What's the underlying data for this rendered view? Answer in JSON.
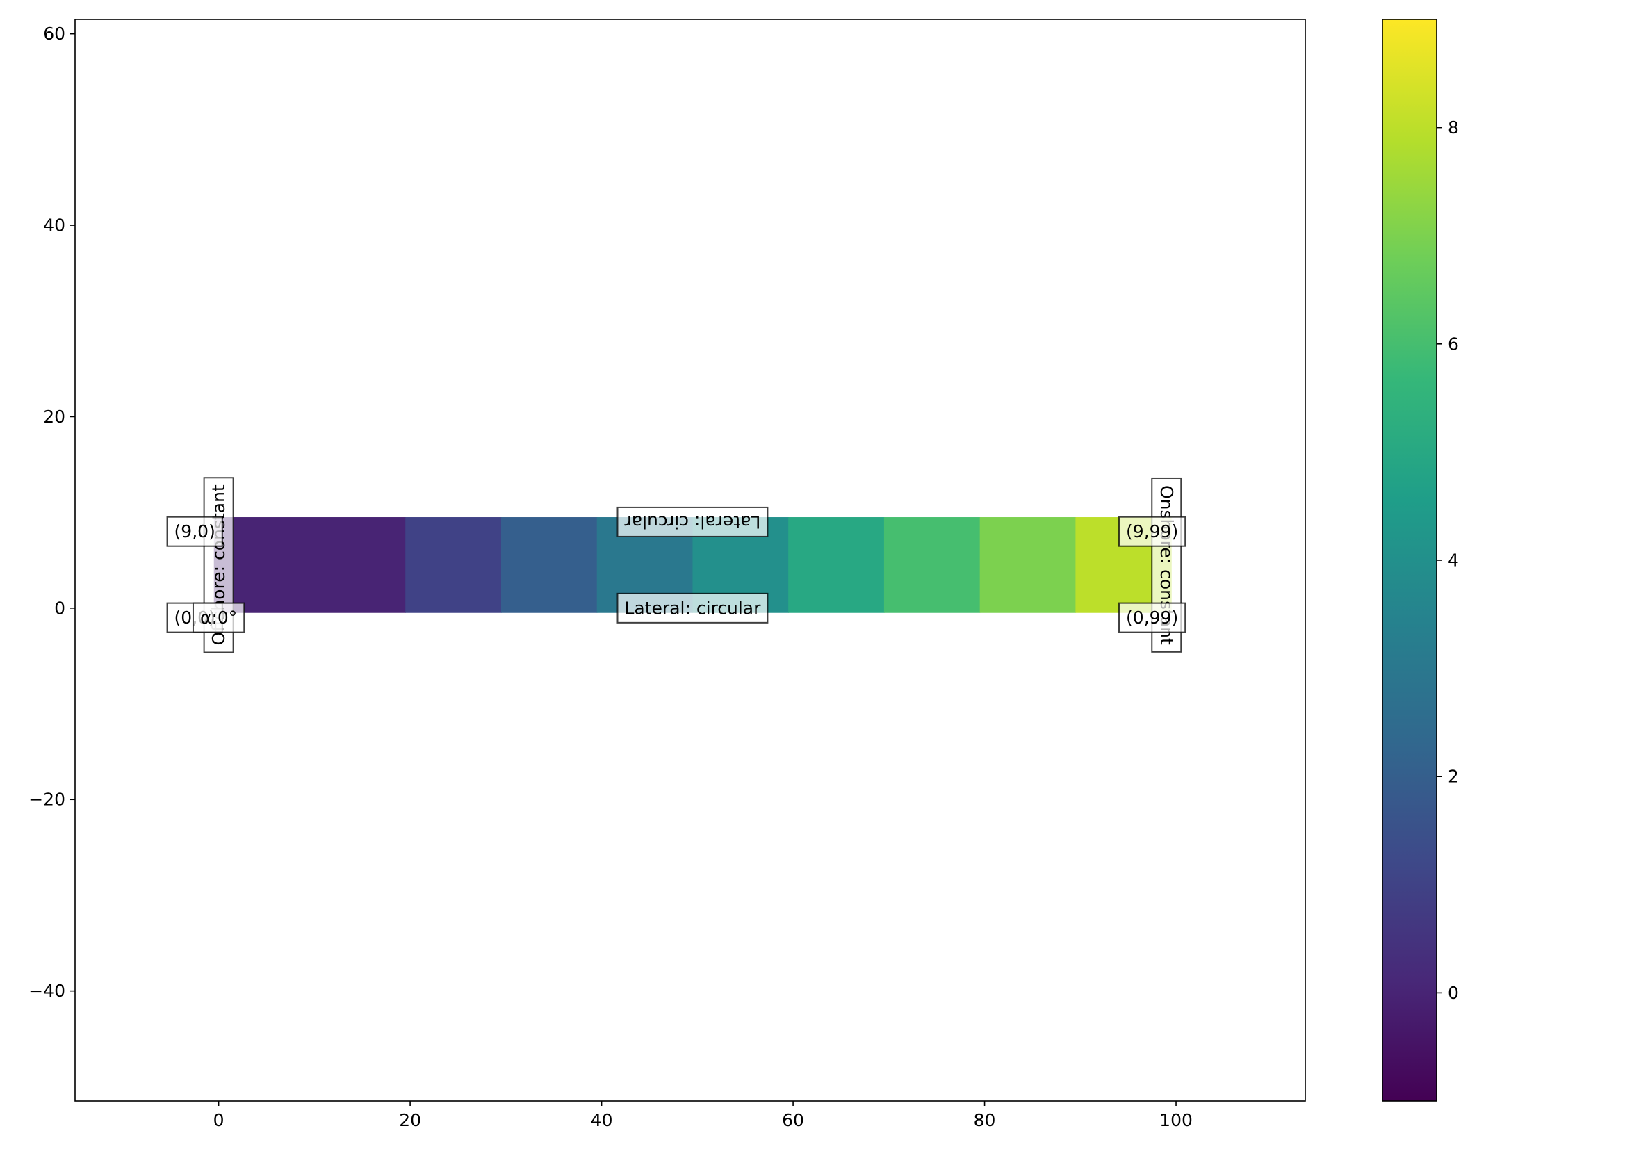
{
  "chart_data": {
    "type": "heatmap",
    "title": "",
    "xlabel": "",
    "ylabel": "",
    "xlim": [
      -15,
      113.5
    ],
    "ylim": [
      -51.5,
      61.5
    ],
    "x_ticks": [
      0,
      20,
      40,
      60,
      80,
      100
    ],
    "x_tick_labels": [
      "0",
      "20",
      "40",
      "60",
      "80",
      "100"
    ],
    "y_ticks": [
      -40,
      -20,
      0,
      20,
      40,
      60
    ],
    "y_tick_labels": [
      "−40",
      "−20",
      "0",
      "20",
      "40",
      "60"
    ],
    "grid": false,
    "colormap": "viridis",
    "colorbar": {
      "range": [
        -1,
        9
      ],
      "ticks": [
        0,
        2,
        4,
        6,
        8
      ],
      "tick_labels": [
        "0",
        "2",
        "4",
        "6",
        "8"
      ]
    },
    "cells": [
      {
        "x0": -0.5,
        "x1": 19.5,
        "y0": -0.5,
        "y1": 9.5,
        "value": 0
      },
      {
        "x0": 19.5,
        "x1": 29.5,
        "y0": -0.5,
        "y1": 9.5,
        "value": 1
      },
      {
        "x0": 29.5,
        "x1": 39.5,
        "y0": -0.5,
        "y1": 9.5,
        "value": 2
      },
      {
        "x0": 39.5,
        "x1": 49.5,
        "y0": -0.5,
        "y1": 9.5,
        "value": 3
      },
      {
        "x0": 49.5,
        "x1": 59.5,
        "y0": -0.5,
        "y1": 9.5,
        "value": 4
      },
      {
        "x0": 59.5,
        "x1": 69.5,
        "y0": -0.5,
        "y1": 9.5,
        "value": 5
      },
      {
        "x0": 69.5,
        "x1": 79.5,
        "y0": -0.5,
        "y1": 9.5,
        "value": 6
      },
      {
        "x0": 79.5,
        "x1": 89.5,
        "y0": -0.5,
        "y1": 9.5,
        "value": 7
      },
      {
        "x0": 89.5,
        "x1": 99.5,
        "y0": -0.5,
        "y1": 9.5,
        "value": 8
      }
    ],
    "annotations": [
      {
        "text": "Offshore: constant",
        "x": 0,
        "y": 4.5,
        "rotation": -90
      },
      {
        "text": "Onshore: constant",
        "x": 99,
        "y": 4.5,
        "rotation": 90
      },
      {
        "text": "Lateral: circular",
        "x": 49.5,
        "y": 9,
        "rotation": 180
      },
      {
        "text": "Lateral: circular",
        "x": 49.5,
        "y": 0,
        "rotation": 0
      },
      {
        "text": "(9,0)",
        "x": -2.5,
        "y": 8,
        "rotation": 0
      },
      {
        "text": "(0,0)",
        "x": -2.5,
        "y": -1,
        "rotation": 0
      },
      {
        "text": "(9,99)",
        "x": 97.5,
        "y": 8,
        "rotation": 0
      },
      {
        "text": "(0,99)",
        "x": 97.5,
        "y": -1,
        "rotation": 0
      },
      {
        "text": "α:0°",
        "x": 0,
        "y": -1,
        "rotation": 0
      }
    ]
  }
}
